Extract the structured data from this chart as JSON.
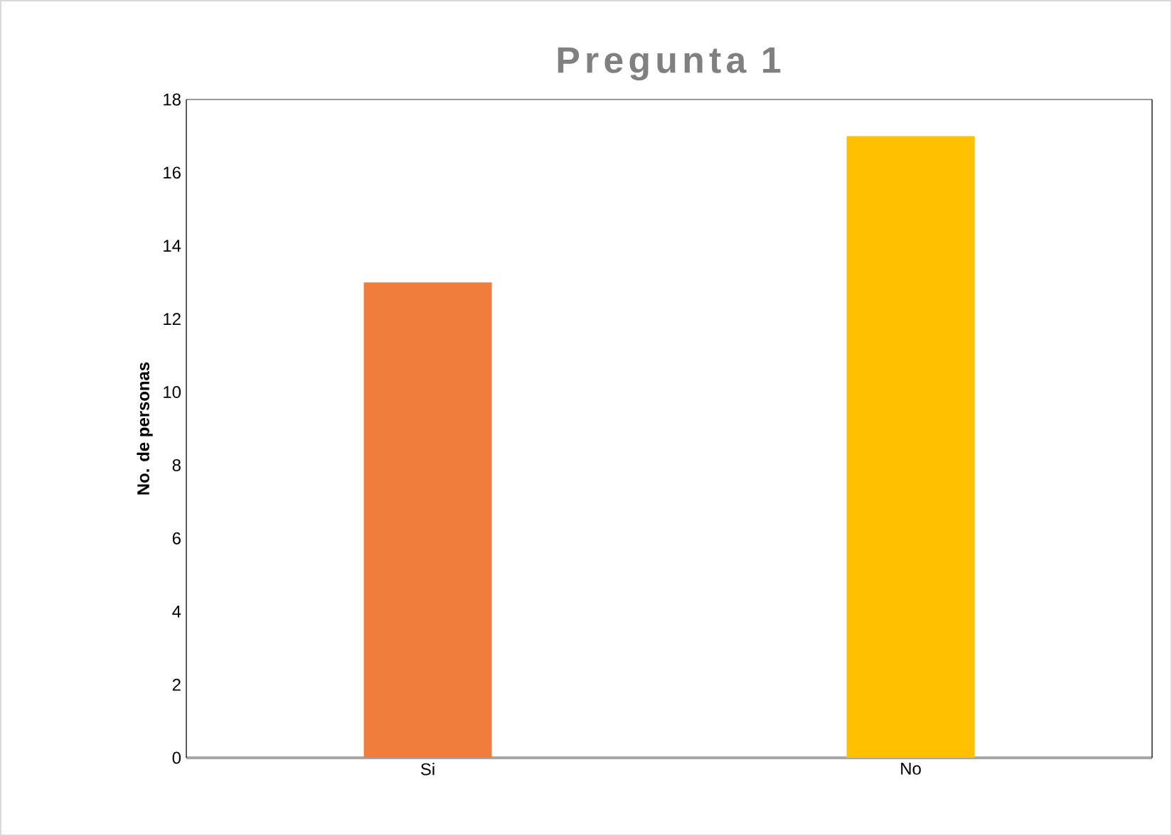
{
  "chart_data": {
    "type": "bar",
    "title": "Pregunta 1",
    "ylabel": "No. de personas",
    "categories": [
      "Si",
      "No"
    ],
    "values": [
      13,
      17
    ],
    "colors": [
      "#f07d3c",
      "#ffc000"
    ],
    "ylim": [
      0,
      18
    ],
    "yticks": [
      0,
      2,
      4,
      6,
      8,
      10,
      12,
      14,
      16,
      18
    ]
  }
}
